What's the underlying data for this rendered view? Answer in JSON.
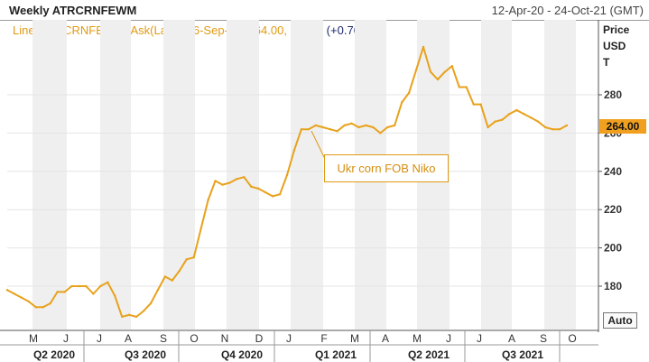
{
  "header": {
    "title": "Weekly ATRCRNFEWM",
    "range": "12-Apr-20 - 24-Oct-21 (GMT)"
  },
  "legend": {
    "series_info": "Line, ATRCRNFEWM, Ask(Last), 26-Sep-21, 264.00,",
    "change": "+2.00, (+0.76%)"
  },
  "axis": {
    "title_line1": "Price",
    "title_line2": "USD",
    "title_line3": "T"
  },
  "last_price_label": "264.00",
  "auto_button_label": "Auto",
  "annotation_label": "Ukr corn FOB Niko",
  "colors": {
    "line": "#e8a21c",
    "band": "#efefef",
    "axis": "#555555",
    "accent": "#f0a01e",
    "change": "#1e2a6e"
  },
  "chart_data": {
    "type": "line",
    "title": "Weekly ATRCRNFEWM",
    "xlabel": "",
    "ylabel": "Price USD T",
    "ylim": [
      160,
      305
    ],
    "yticks": [
      180,
      200,
      220,
      240,
      260,
      280
    ],
    "month_ticks": [
      "M",
      "J",
      "J",
      "A",
      "S",
      "O",
      "N",
      "D",
      "J",
      "F",
      "M",
      "A",
      "M",
      "J",
      "J",
      "A",
      "S",
      "O"
    ],
    "quarter_ticks": [
      "Q2 2020",
      "Q3 2020",
      "Q4 2020",
      "Q1 2021",
      "Q2 2021",
      "Q3 2021"
    ],
    "series": [
      {
        "values": [
          178,
          176,
          174,
          172,
          169,
          169,
          171,
          177,
          177,
          180,
          180,
          180,
          176,
          180,
          182,
          175,
          164,
          165,
          164,
          167,
          171,
          178,
          185,
          183,
          188,
          194,
          195,
          210,
          225,
          235,
          233,
          234,
          236,
          237,
          232,
          231,
          229,
          227,
          228,
          238,
          251,
          262,
          262,
          264,
          263,
          262,
          261,
          264,
          265,
          263,
          264,
          263,
          260,
          263,
          264,
          276,
          281,
          293,
          305,
          292,
          288,
          292,
          295,
          284,
          284,
          275,
          275,
          263,
          266,
          267,
          270,
          272,
          270,
          268,
          266,
          263,
          262,
          262,
          264
        ]
      }
    ],
    "last_value": 264.0,
    "change": 2.0,
    "change_pct": 0.76,
    "last_date": "26-Sep-21",
    "annotation": "Ukr corn FOB Niko"
  }
}
